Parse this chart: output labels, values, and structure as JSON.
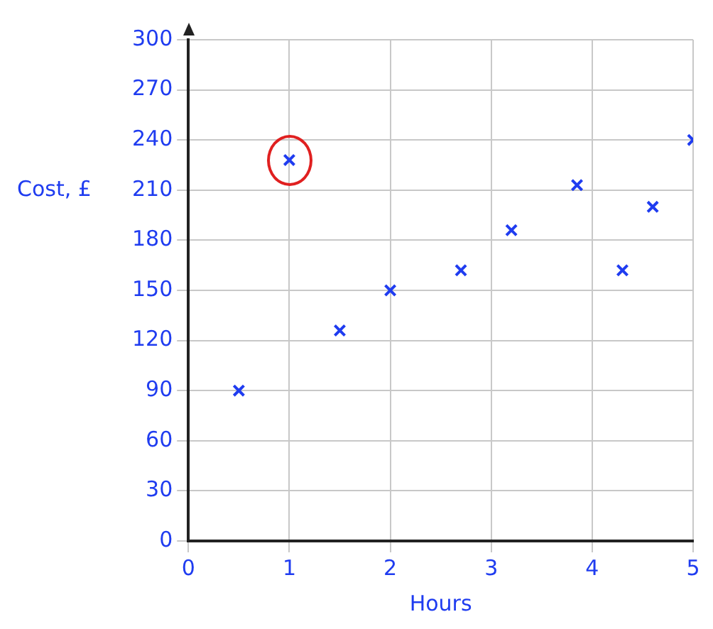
{
  "chart_data": {
    "type": "scatter",
    "xlabel": "Hours",
    "ylabel": "Cost, £",
    "x": [
      0.5,
      1,
      1.5,
      2,
      2.7,
      3.2,
      3.85,
      4.3,
      4.6,
      5
    ],
    "values": [
      90,
      228,
      126,
      150,
      162,
      186,
      213,
      162,
      200,
      240
    ],
    "color": "#1f3cf0",
    "marker": "cross",
    "xlim": [
      0,
      5
    ],
    "xticks": [
      0,
      1,
      2,
      3,
      4,
      5
    ],
    "ylim": [
      0,
      300
    ],
    "yticks": [
      0,
      30,
      60,
      90,
      120,
      150,
      180,
      210,
      240,
      270,
      300
    ],
    "grid": true,
    "legend": false
  }
}
